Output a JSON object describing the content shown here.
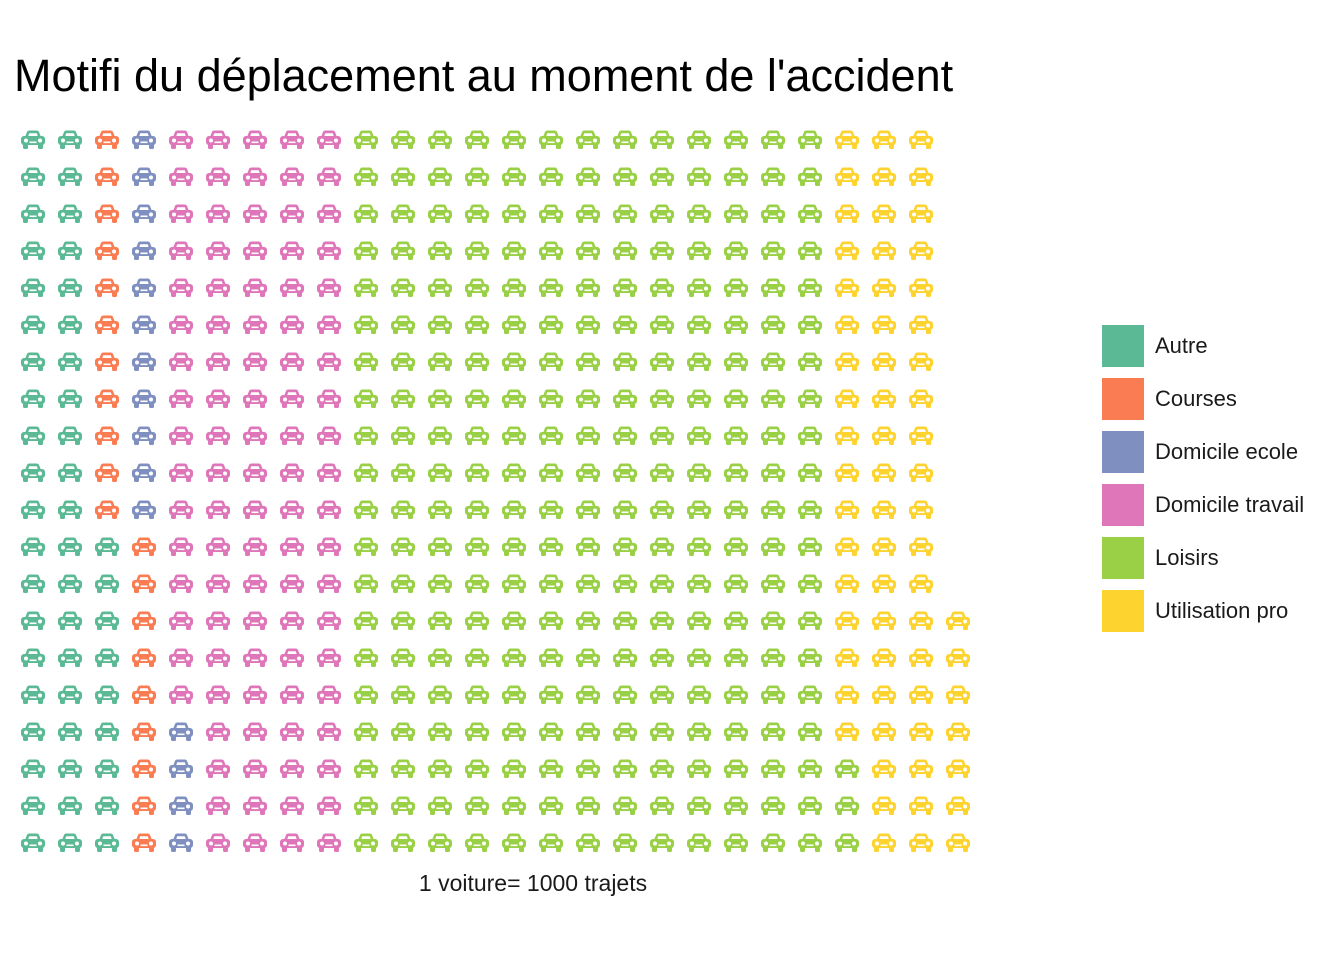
{
  "chart_data": {
    "type": "waffle",
    "title": "Motifi du déplacement au moment de l'accident",
    "caption": "1 voiture= 1000 trajets",
    "unit_icon": "car-icon",
    "grid": false,
    "legend_placement": "right",
    "rows": 20,
    "columns": 26,
    "series": [
      {
        "name": "Autre",
        "value": 49,
        "color": "#5BBA95"
      },
      {
        "name": "Courses",
        "value": 20,
        "color": "#F97C52"
      },
      {
        "name": "Domicile ecole",
        "value": 15,
        "color": "#7F90C0"
      },
      {
        "name": "Domicile travail",
        "value": 96,
        "color": "#DE76B9"
      },
      {
        "name": "Loisirs",
        "value": 263,
        "color": "#99D045"
      },
      {
        "name": "Utilisation pro",
        "value": 64,
        "color": "#FDD32F"
      }
    ]
  }
}
